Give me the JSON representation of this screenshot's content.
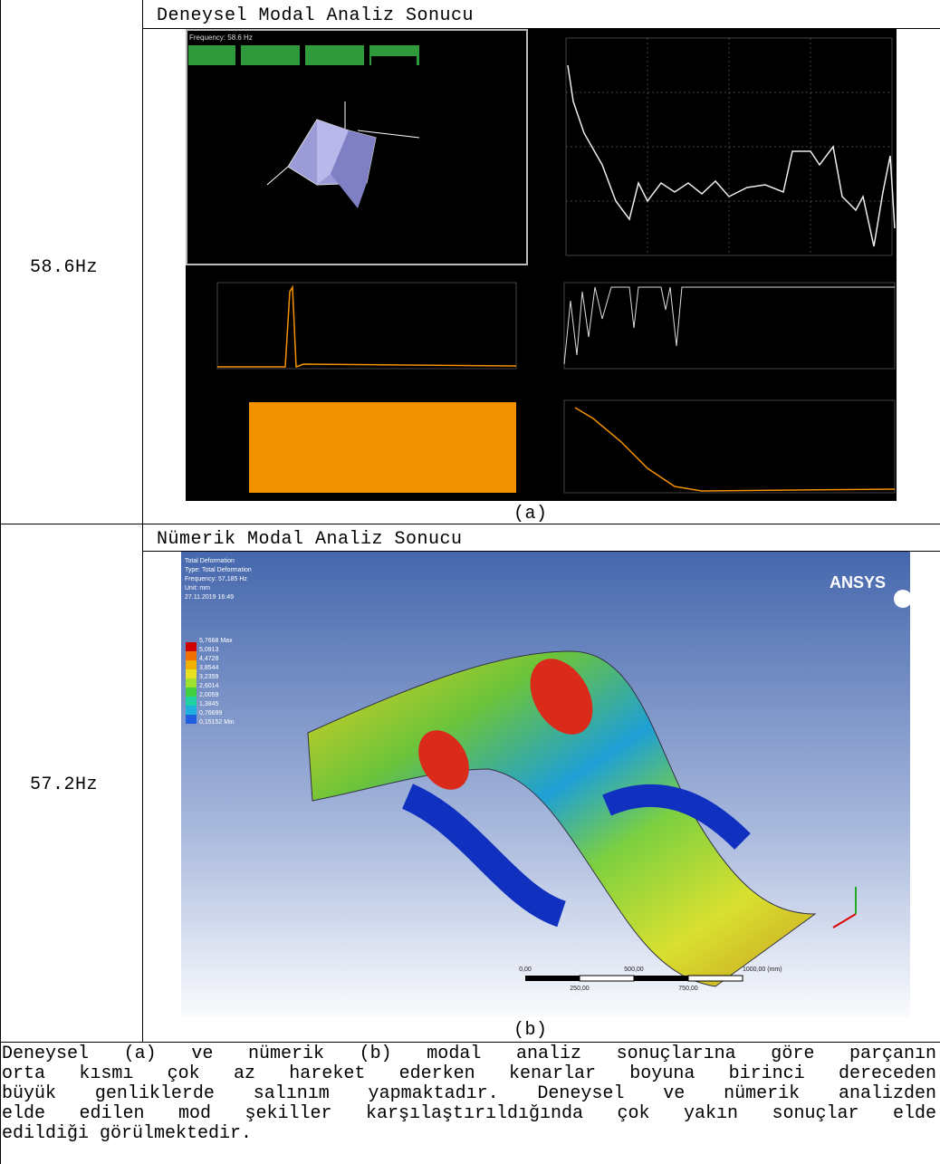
{
  "table": {
    "rows": [
      {
        "label": "58.6Hz",
        "header": "Deneysel Modal Analiz Sonucu",
        "caption": "(a)",
        "image_texts": {
          "frequency": "Frequency: 58.6 Hz"
        }
      },
      {
        "label": "57.2Hz",
        "header": "Nümerik Modal Analiz Sonucu",
        "caption": "(b)",
        "image_texts": {
          "info": [
            "Total Deformation",
            "Type: Total Deformation",
            "Frequency: 57,185 Hz",
            "Unit: mm",
            "27.11.2019 16:49"
          ],
          "legend": [
            "5,7668 Max",
            "5,0913",
            "4,4728",
            "3,8544",
            "3,2359",
            "2,6014",
            "2,0059",
            "1,3845",
            "0,76699",
            "0,15152 Min"
          ],
          "scale_top": [
            "0,00",
            "500,00",
            "1000,00 (mm)"
          ],
          "scale_bottom": [
            "250,00",
            "750,00"
          ],
          "brand": "ANSYS"
        }
      }
    ],
    "paragraph_lines": [
      "Deneysel (a) ve nümerik (b) modal analiz sonuçlarına göre parçanın",
      "orta kısmı çok az hareket ederken kenarlar boyuna birinci dereceden",
      "büyük genliklerde salınım yapmaktadır. Deneysel ve nümerik analizden",
      "elde edilen mod şekiller karşılaştırıldığında çok yakın sonuçlar elde",
      "edildiği görülmektedir."
    ]
  }
}
